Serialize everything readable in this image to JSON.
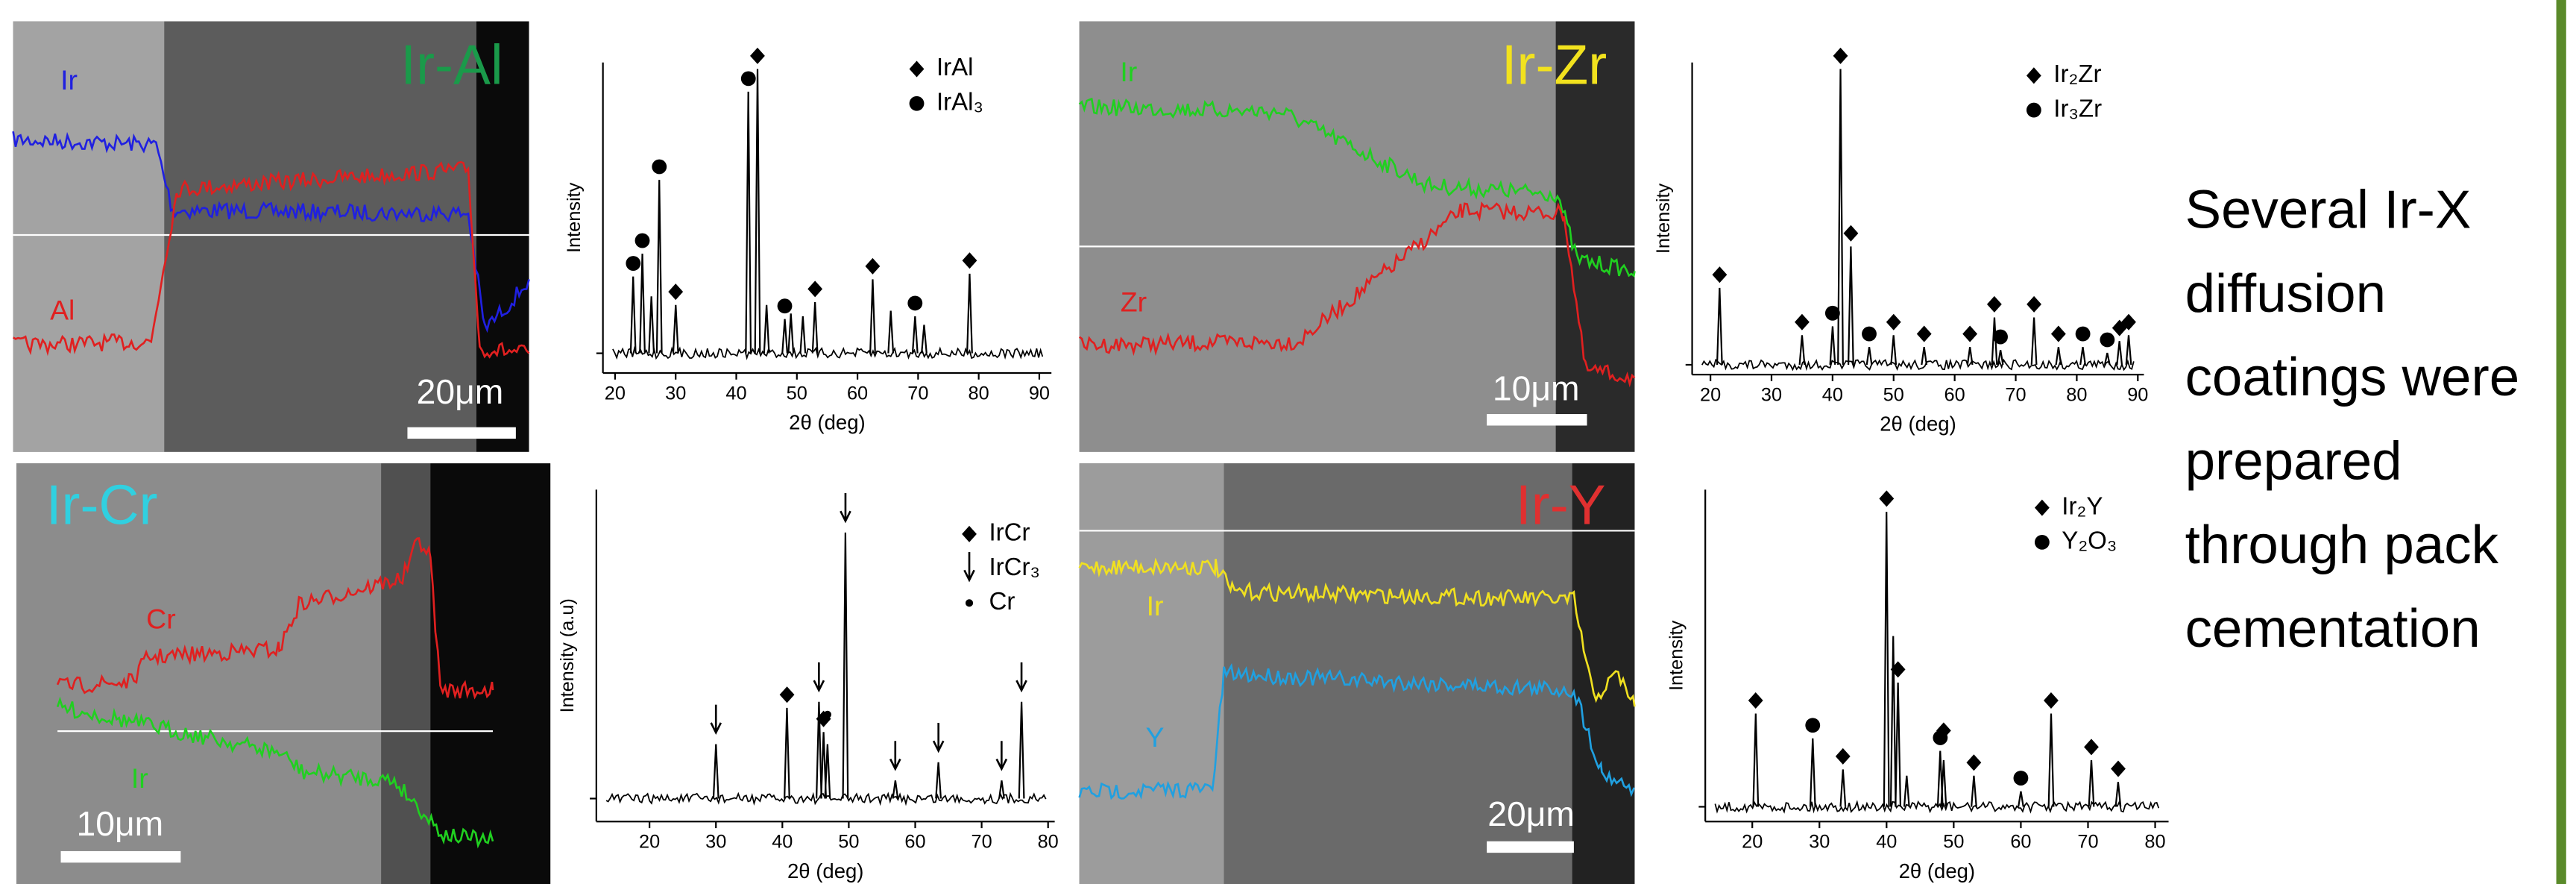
{
  "panels": [
    {
      "title": "Ir-Al",
      "labels": [
        "Ir",
        "Al"
      ],
      "scale_bar": "20μm"
    },
    {
      "title": "Ir-Zr",
      "labels": [
        "Ir",
        "Zr"
      ],
      "scale_bar": "10μm"
    },
    {
      "title": "Ir-Cr",
      "labels": [
        "Cr",
        "Ir"
      ],
      "scale_bar": "10μm"
    },
    {
      "title": "Ir-Y",
      "labels": [
        "Ir",
        "Y"
      ],
      "scale_bar": "20μm"
    }
  ],
  "chart_data": [
    {
      "type": "spectrum",
      "xlabel": "2θ (deg)",
      "ylabel": "Intensity",
      "xlim": [
        18,
        92
      ],
      "xticks": [
        20,
        30,
        40,
        50,
        60,
        70,
        80,
        90
      ],
      "ylim": [
        0,
        100
      ],
      "legend": [
        {
          "label": "IrAl",
          "marker": "diamond"
        },
        {
          "label": "IrAl₃",
          "marker": "circle"
        }
      ],
      "peaks": [
        {
          "x": 23,
          "y": 27,
          "phase": 1
        },
        {
          "x": 24.5,
          "y": 35,
          "phase": 1
        },
        {
          "x": 26,
          "y": 20,
          "phase": null
        },
        {
          "x": 27.3,
          "y": 61,
          "phase": 1
        },
        {
          "x": 30,
          "y": 17,
          "phase": 0
        },
        {
          "x": 42,
          "y": 92,
          "phase": 1
        },
        {
          "x": 43.5,
          "y": 100,
          "phase": 0
        },
        {
          "x": 45,
          "y": 17,
          "phase": null
        },
        {
          "x": 48,
          "y": 12,
          "phase": 1
        },
        {
          "x": 49,
          "y": 14,
          "phase": null
        },
        {
          "x": 51,
          "y": 13,
          "phase": null
        },
        {
          "x": 53,
          "y": 18,
          "phase": 0
        },
        {
          "x": 62.5,
          "y": 26,
          "phase": 0
        },
        {
          "x": 65.5,
          "y": 15,
          "phase": null
        },
        {
          "x": 69.5,
          "y": 13,
          "phase": 1
        },
        {
          "x": 71,
          "y": 10,
          "phase": null
        },
        {
          "x": 78.5,
          "y": 28,
          "phase": 0
        }
      ]
    },
    {
      "type": "spectrum",
      "xlabel": "2θ (deg)",
      "ylabel": "Intensity",
      "xlim": [
        17,
        91
      ],
      "xticks": [
        20,
        30,
        40,
        50,
        60,
        70,
        80,
        90
      ],
      "ylim": [
        0,
        100
      ],
      "legend": [
        {
          "label": "Ir₂Zr",
          "marker": "diamond"
        },
        {
          "label": "Ir₃Zr",
          "marker": "circle"
        }
      ],
      "peaks": [
        {
          "x": 21.5,
          "y": 26,
          "phase": 0
        },
        {
          "x": 35,
          "y": 10,
          "phase": 0
        },
        {
          "x": 40,
          "y": 13,
          "phase": 1
        },
        {
          "x": 41.3,
          "y": 100,
          "phase": 0
        },
        {
          "x": 43,
          "y": 40,
          "phase": 0
        },
        {
          "x": 46,
          "y": 6,
          "phase": 1
        },
        {
          "x": 50,
          "y": 10,
          "phase": 0
        },
        {
          "x": 55,
          "y": 6,
          "phase": 0
        },
        {
          "x": 62.5,
          "y": 6,
          "phase": 0
        },
        {
          "x": 66.5,
          "y": 16,
          "phase": 0
        },
        {
          "x": 67.5,
          "y": 5,
          "phase": 1
        },
        {
          "x": 73,
          "y": 16,
          "phase": 0
        },
        {
          "x": 77,
          "y": 6,
          "phase": 0
        },
        {
          "x": 81,
          "y": 6,
          "phase": 1
        },
        {
          "x": 85,
          "y": 4,
          "phase": 1
        },
        {
          "x": 87,
          "y": 8,
          "phase": 0
        },
        {
          "x": 88.5,
          "y": 10,
          "phase": 0
        }
      ]
    },
    {
      "type": "spectrum",
      "xlabel": "2θ (deg)",
      "ylabel": "Intensity (a.u)",
      "xlim": [
        12,
        81
      ],
      "xticks": [
        20,
        30,
        40,
        50,
        60,
        70,
        80
      ],
      "ylim": [
        0,
        100
      ],
      "legend": [
        {
          "label": "IrCr",
          "marker": "diamond"
        },
        {
          "label": "IrCr₃",
          "marker": "arrow"
        },
        {
          "label": "Cr",
          "marker": "dot"
        }
      ],
      "peaks": [
        {
          "x": 30,
          "y": 18,
          "phase": 1
        },
        {
          "x": 40.7,
          "y": 30,
          "phase": 0
        },
        {
          "x": 45.5,
          "y": 32,
          "phase": 1
        },
        {
          "x": 46.2,
          "y": 22,
          "phase": 0
        },
        {
          "x": 46.8,
          "y": 18,
          "phase": 2
        },
        {
          "x": 49.5,
          "y": 88,
          "phase": 1
        },
        {
          "x": 57,
          "y": 6,
          "phase": 1
        },
        {
          "x": 63.5,
          "y": 12,
          "phase": 1
        },
        {
          "x": 73,
          "y": 6,
          "phase": 1
        },
        {
          "x": 76,
          "y": 32,
          "phase": 1
        }
      ]
    },
    {
      "type": "spectrum",
      "xlabel": "2θ (deg)",
      "ylabel": "Intensity",
      "xlim": [
        13,
        82
      ],
      "xticks": [
        20,
        30,
        40,
        50,
        60,
        70,
        80
      ],
      "ylim": [
        0,
        100
      ],
      "legend": [
        {
          "label": "Ir₂Y",
          "marker": "diamond"
        },
        {
          "label": "Y₂O₃",
          "marker": "circle"
        }
      ],
      "peaks": [
        {
          "x": 20.5,
          "y": 30,
          "phase": 0
        },
        {
          "x": 29,
          "y": 22,
          "phase": 1
        },
        {
          "x": 33.5,
          "y": 12,
          "phase": 0
        },
        {
          "x": 40,
          "y": 95,
          "phase": 0
        },
        {
          "x": 41,
          "y": 55,
          "phase": null
        },
        {
          "x": 41.7,
          "y": 40,
          "phase": 0
        },
        {
          "x": 43,
          "y": 10,
          "phase": null
        },
        {
          "x": 48,
          "y": 18,
          "phase": 1
        },
        {
          "x": 48.5,
          "y": 15,
          "phase": 0
        },
        {
          "x": 53,
          "y": 10,
          "phase": 0
        },
        {
          "x": 60,
          "y": 5,
          "phase": 1
        },
        {
          "x": 64.5,
          "y": 30,
          "phase": 0
        },
        {
          "x": 70.5,
          "y": 15,
          "phase": 0
        },
        {
          "x": 74.5,
          "y": 8,
          "phase": 0
        }
      ]
    }
  ],
  "text": {
    "lines": [
      "Several Ir-X",
      "diffusion",
      "coatings were",
      "prepared",
      "through pack",
      "cementation"
    ]
  }
}
